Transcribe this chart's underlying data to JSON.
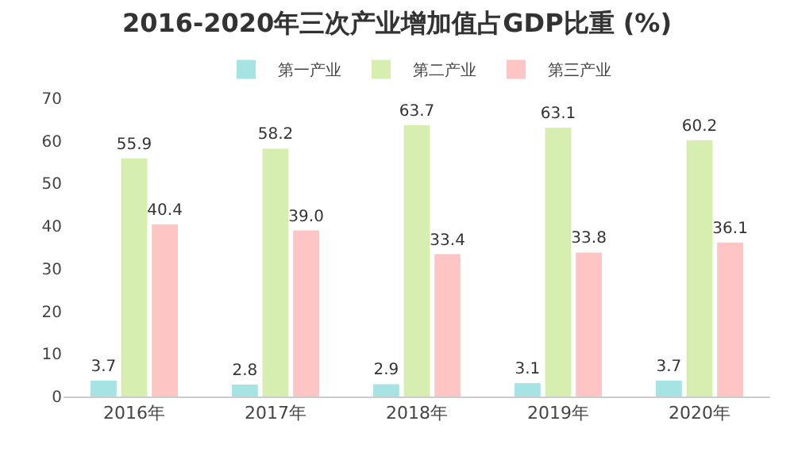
{
  "chart_data": {
    "type": "bar",
    "title": "2016-2020年三次产业增加值占GDP比重 (%)",
    "categories": [
      "2016年",
      "2017年",
      "2018年",
      "2019年",
      "2020年"
    ],
    "series": [
      {
        "name": "第一产业",
        "color": "#a6e3e3",
        "values": [
          3.7,
          2.8,
          2.9,
          3.1,
          3.7
        ],
        "value_labels": [
          "3.7",
          "2.8",
          "2.9",
          "3.1",
          "3.7"
        ]
      },
      {
        "name": "第二产业",
        "color": "#d6eeb0",
        "values": [
          55.9,
          58.2,
          63.7,
          63.1,
          60.2
        ],
        "value_labels": [
          "55.9",
          "58.2",
          "63.7",
          "63.1",
          "60.2"
        ]
      },
      {
        "name": "第三产业",
        "color": "#ffc4c4",
        "values": [
          40.4,
          39.0,
          33.4,
          33.8,
          36.1
        ],
        "value_labels": [
          "40.4",
          "39.0",
          "33.4",
          "33.8",
          "36.1"
        ]
      }
    ],
    "ylim": [
      0,
      70
    ],
    "yticks": [
      0,
      10,
      20,
      30,
      40,
      50,
      60,
      70
    ],
    "grid": false,
    "legend": "top"
  }
}
